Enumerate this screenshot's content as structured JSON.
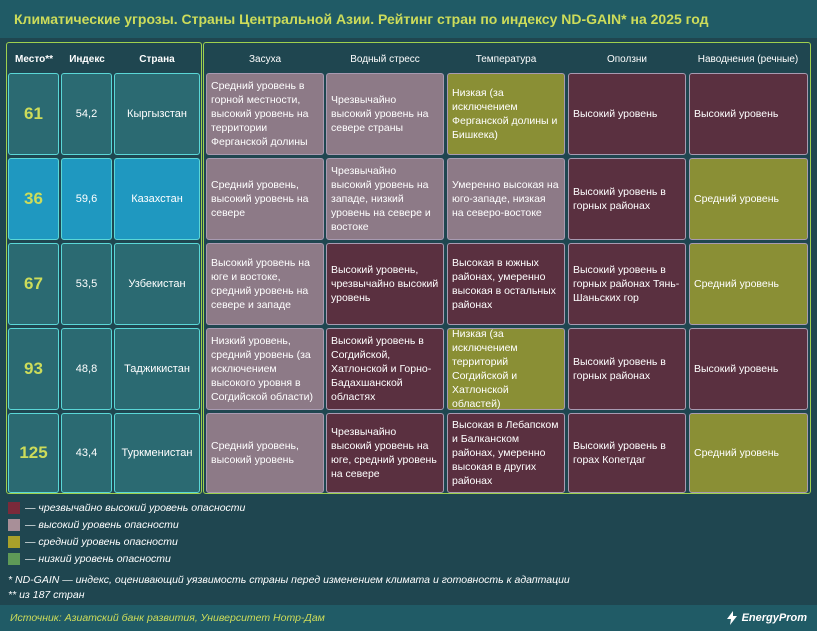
{
  "title": "Климатические угрозы. Страны Центральной Азии. Рейтинг стран по индексу ND-GAIN* на 2025 год",
  "headers": {
    "place": "Место**",
    "index": "Индекс",
    "country": "Страна",
    "drought": "Засуха",
    "water_stress": "Водный стресс",
    "temperature": "Температура",
    "landslides": "Оползни",
    "floods": "Наводнения (речные)"
  },
  "rows": [
    {
      "place": "61",
      "index": "54,2",
      "country": "Кыргызстан",
      "drought": "Средний уровень в горной местности, высокий уровень на территории Ферганской долины",
      "water_stress": "Чрезвычайно высокий уровень на севере страны",
      "temperature": "Низкая (за исключением Ферганской долины и Бишкека)",
      "landslides": "Высокий уровень",
      "floods": "Высокий уровень"
    },
    {
      "place": "36",
      "index": "59,6",
      "country": "Казахстан",
      "drought": "Средний уровень, высокий уровень на севере",
      "water_stress": "Чрезвычайно высокий уровень на западе, низкий уровень на севере и востоке",
      "temperature": "Умеренно высокая на юго-западе, низкая на северо-востоке",
      "landslides": "Высокий уровень в горных районах",
      "floods": "Средний уровень"
    },
    {
      "place": "67",
      "index": "53,5",
      "country": "Узбекистан",
      "drought": "Высокий уровень на юге и востоке, средний уровень на севере и западе",
      "water_stress": "Высокий уровень, чрезвычайно высокий уровень",
      "temperature": "Высокая в южных районах, умеренно высокая в остальных районах",
      "landslides": "Высокий уровень в горных районах Тянь-Шаньских гор",
      "floods": "Средний уровень"
    },
    {
      "place": "93",
      "index": "48,8",
      "country": "Таджикистан",
      "drought": "Низкий уровень, средний уровень (за исключением высокого уровня в Согдийской области)",
      "water_stress": "Высокий уровень в Согдийской, Хатлонской и Горно-Бадахшанской областях",
      "temperature": "Низкая (за исключением территорий Согдийской и Хатлонской областей)",
      "landslides": "Высокий уровень в горных районах",
      "floods": "Высокий уровень"
    },
    {
      "place": "125",
      "index": "43,4",
      "country": "Туркменистан",
      "drought": "Средний уровень, высокий уровень",
      "water_stress": "Чрезвычайно высокий уровень на юге, средний уровень на севере",
      "temperature": "Высокая в Лебапском и Балканском районах, умеренно высокая в других районах",
      "landslides": "Высокий уровень в горах Копетдаг",
      "floods": "Средний уровень"
    }
  ],
  "legend": [
    {
      "color": "#7a2a3a",
      "text": "— чрезвычайно высокий уровень опасности"
    },
    {
      "color": "#a88f98",
      "text": "— высокий уровень опасности"
    },
    {
      "color": "#a8a02a",
      "text": "— средний уровень опасности"
    },
    {
      "color": "#5f9a57",
      "text": "— низкий уровень опасности"
    }
  ],
  "notes": {
    "index_note": "* ND-GAIN — индекс, оценивающий уязвимость страны перед изменением климата и готовность к адаптации",
    "place_note": "** из 187 стран"
  },
  "source": "Источник: Азиатский банк развития, Университет Нотр-Дам",
  "brand": "EnergyProm",
  "colors": {
    "very_high": "#5a3040",
    "high": "#8d7a87",
    "medium": "#8a8f35",
    "low": "#5f9a57",
    "accent": "#cddc5a"
  }
}
